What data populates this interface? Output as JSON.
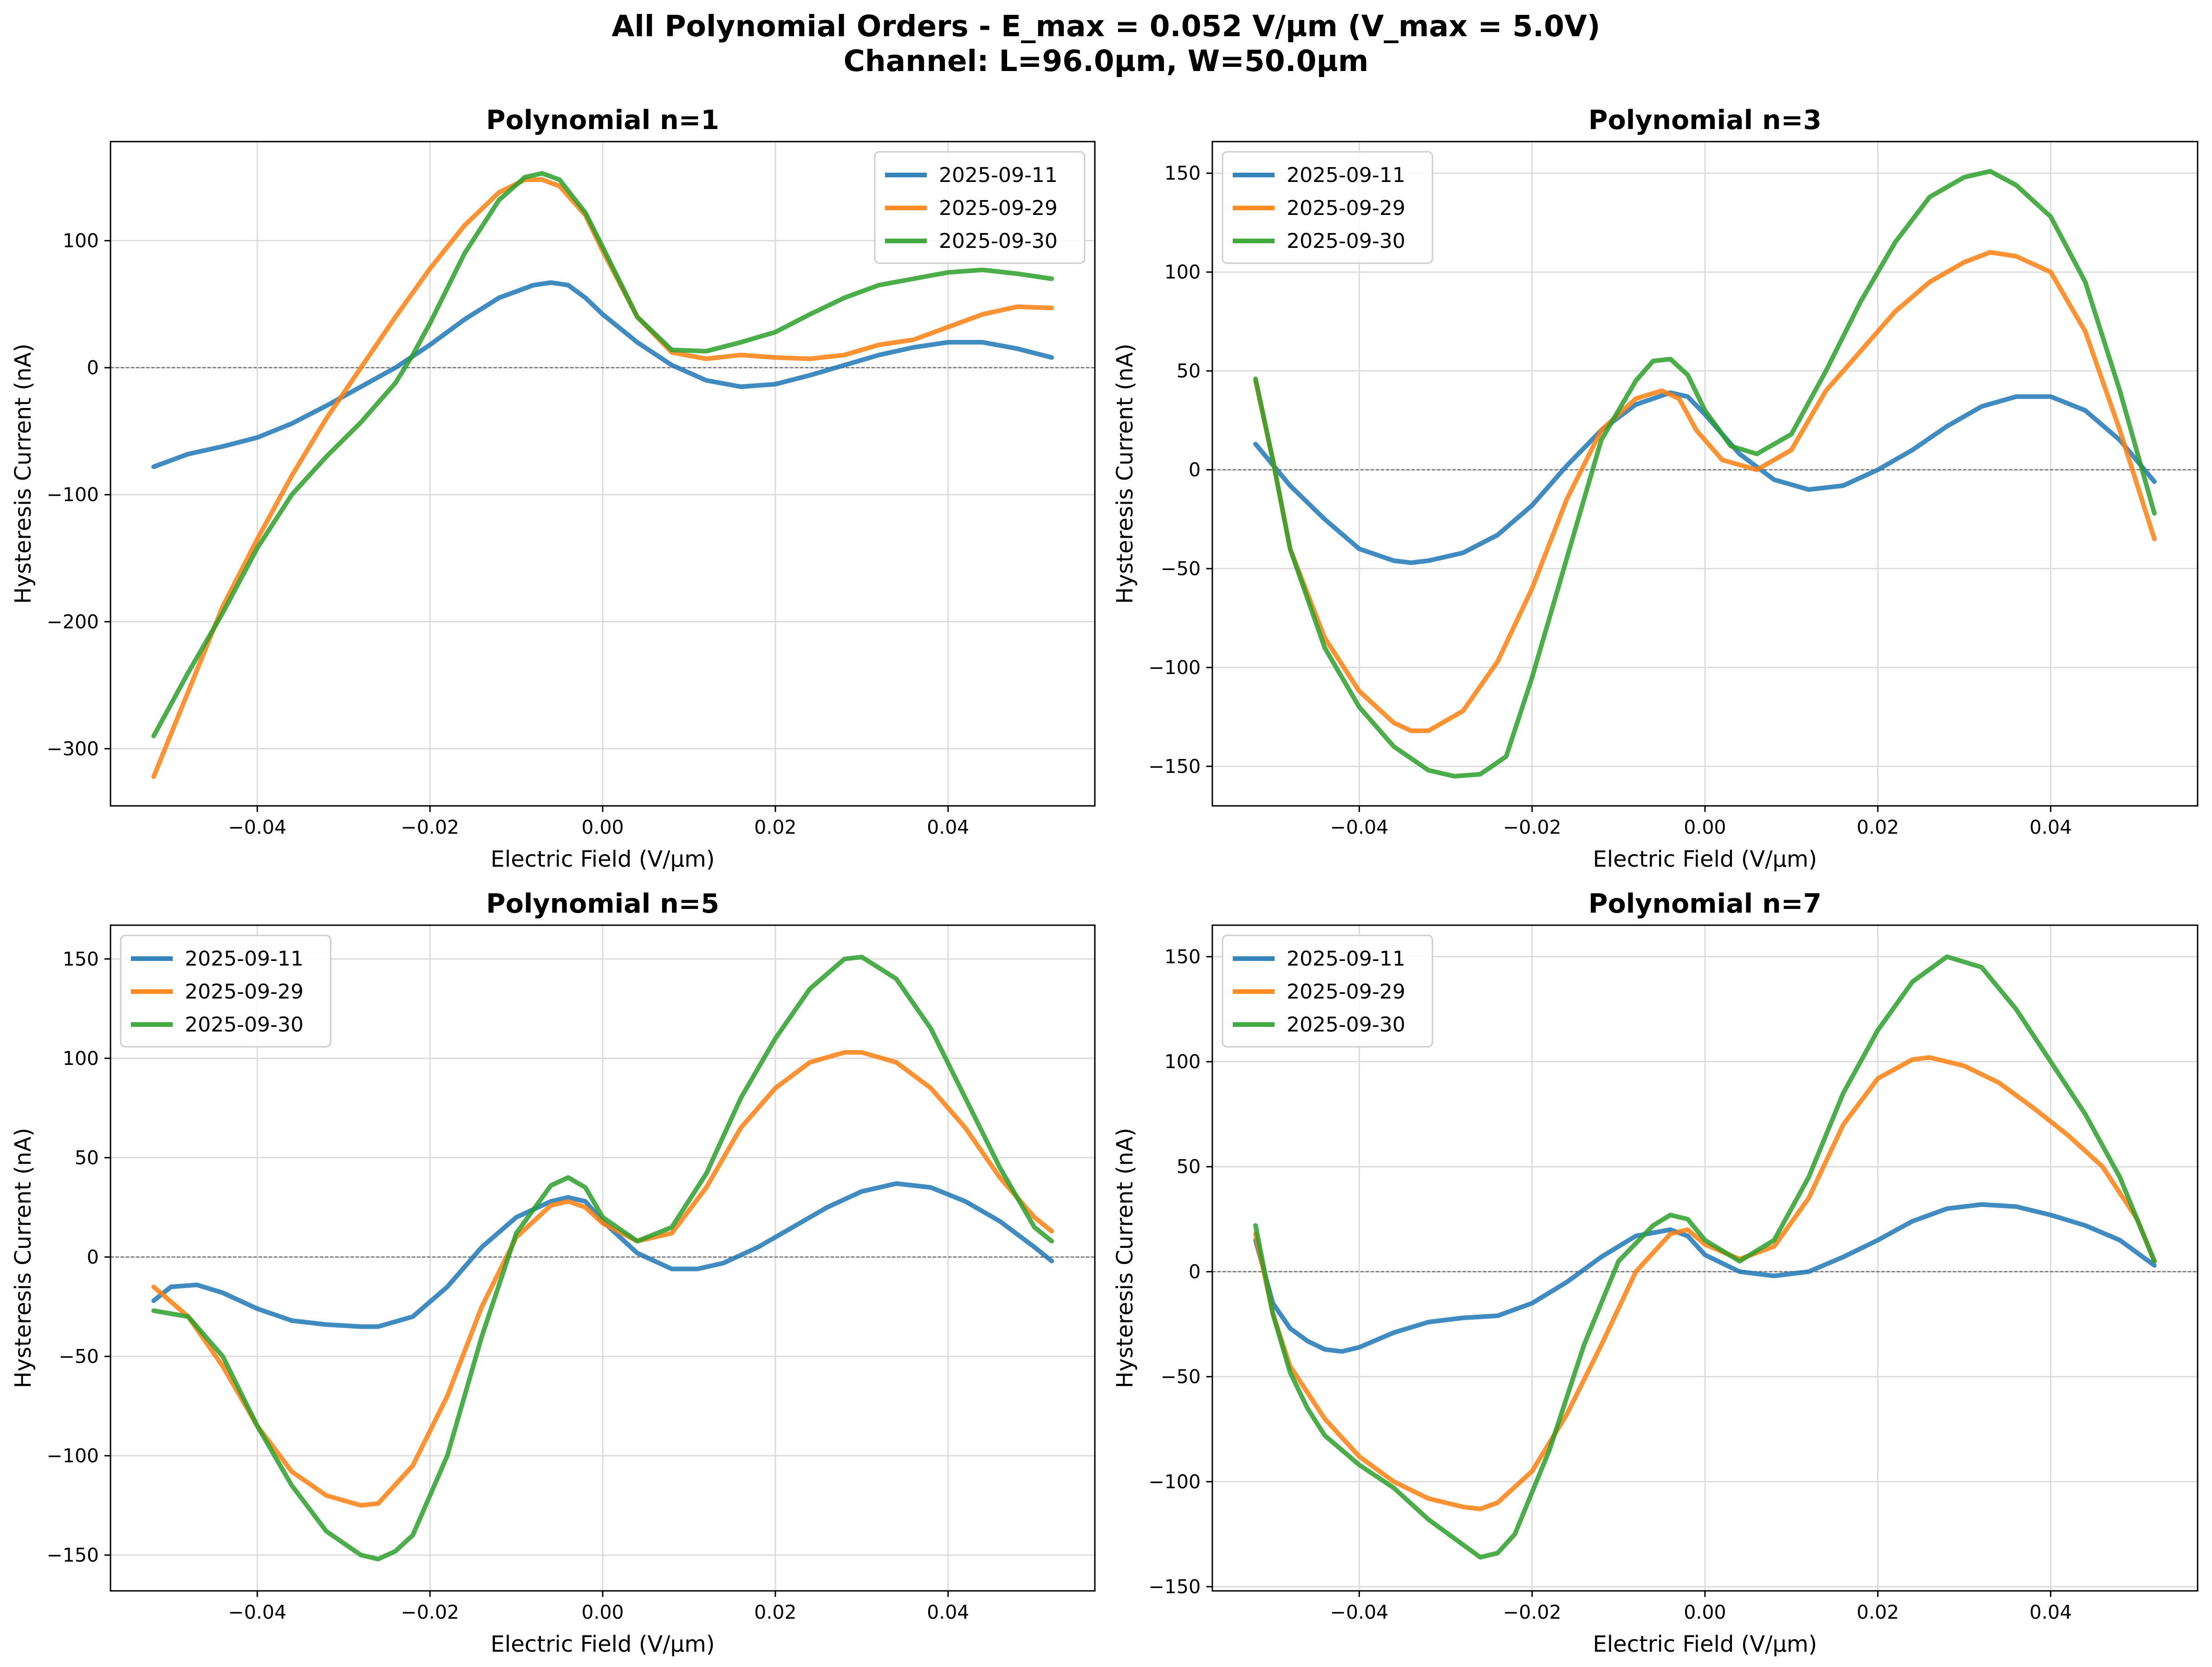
{
  "figure": {
    "title_line1": "All Polynomial Orders - E_max = 0.052 V/µm (V_max = 5.0V)",
    "title_line2": "Channel: L=96.0µm, W=50.0µm"
  },
  "colors": {
    "2025-09-11": "#1f77b4",
    "2025-09-29": "#ff7f0e",
    "2025-09-30": "#2ca02c"
  },
  "chart_data": [
    {
      "type": "line",
      "title": "Polynomial n=1",
      "xlabel": "Electric Field (V/µm)",
      "ylabel": "Hysteresis Current (nA)",
      "xlim": [
        -0.057,
        0.057
      ],
      "ylim": [
        -345,
        178
      ],
      "xticks": [
        -0.04,
        -0.02,
        0.0,
        0.02,
        0.04
      ],
      "xtick_labels": [
        "−0.04",
        "−0.02",
        "0.00",
        "0.02",
        "0.04"
      ],
      "yticks": [
        -300,
        -200,
        -100,
        0,
        100
      ],
      "ytick_labels": [
        "−300",
        "−200",
        "−100",
        "0",
        "100"
      ],
      "legend_position": "upper right",
      "grid": true,
      "zero_line": true,
      "series": [
        {
          "name": "2025-09-11",
          "x": [
            -0.052,
            -0.048,
            -0.044,
            -0.04,
            -0.036,
            -0.032,
            -0.028,
            -0.024,
            -0.02,
            -0.016,
            -0.012,
            -0.008,
            -0.006,
            -0.004,
            -0.002,
            0.0,
            0.004,
            0.008,
            0.012,
            0.016,
            0.02,
            0.024,
            0.028,
            0.032,
            0.036,
            0.04,
            0.044,
            0.048,
            0.052
          ],
          "y": [
            -78,
            -68,
            -62,
            -55,
            -44,
            -30,
            -15,
            0,
            18,
            38,
            55,
            65,
            67,
            65,
            55,
            42,
            20,
            2,
            -10,
            -15,
            -13,
            -6,
            2,
            10,
            16,
            20,
            20,
            15,
            8
          ]
        },
        {
          "name": "2025-09-29",
          "x": [
            -0.052,
            -0.048,
            -0.044,
            -0.04,
            -0.036,
            -0.032,
            -0.028,
            -0.024,
            -0.02,
            -0.016,
            -0.012,
            -0.009,
            -0.007,
            -0.005,
            -0.002,
            0.0,
            0.004,
            0.008,
            0.012,
            0.016,
            0.02,
            0.024,
            0.028,
            0.032,
            0.036,
            0.04,
            0.044,
            0.048,
            0.052
          ],
          "y": [
            -322,
            -255,
            -188,
            -135,
            -85,
            -40,
            0,
            40,
            78,
            112,
            138,
            148,
            148,
            143,
            120,
            92,
            40,
            12,
            7,
            10,
            8,
            7,
            10,
            18,
            22,
            32,
            42,
            48,
            47
          ]
        },
        {
          "name": "2025-09-30",
          "x": [
            -0.052,
            -0.048,
            -0.044,
            -0.04,
            -0.036,
            -0.032,
            -0.028,
            -0.024,
            -0.022,
            -0.02,
            -0.016,
            -0.012,
            -0.009,
            -0.007,
            -0.005,
            -0.002,
            0.0,
            0.004,
            0.008,
            0.012,
            0.016,
            0.02,
            0.024,
            0.028,
            0.032,
            0.036,
            0.04,
            0.044,
            0.048,
            0.052
          ],
          "y": [
            -290,
            -240,
            -193,
            -142,
            -100,
            -70,
            -43,
            -12,
            10,
            35,
            90,
            132,
            150,
            153,
            148,
            122,
            95,
            40,
            14,
            13,
            20,
            28,
            42,
            55,
            65,
            70,
            75,
            77,
            74,
            70
          ]
        }
      ]
    },
    {
      "type": "line",
      "title": "Polynomial n=3",
      "xlabel": "Electric Field (V/µm)",
      "ylabel": "Hysteresis Current (nA)",
      "xlim": [
        -0.057,
        0.057
      ],
      "ylim": [
        -170,
        166
      ],
      "xticks": [
        -0.04,
        -0.02,
        0.0,
        0.02,
        0.04
      ],
      "xtick_labels": [
        "−0.04",
        "−0.02",
        "0.00",
        "0.02",
        "0.04"
      ],
      "yticks": [
        -150,
        -100,
        -50,
        0,
        50,
        100,
        150
      ],
      "ytick_labels": [
        "−150",
        "−100",
        "−50",
        "0",
        "50",
        "100",
        "150"
      ],
      "legend_position": "upper left",
      "grid": true,
      "zero_line": true,
      "series": [
        {
          "name": "2025-09-11",
          "x": [
            -0.052,
            -0.048,
            -0.044,
            -0.04,
            -0.036,
            -0.034,
            -0.032,
            -0.028,
            -0.024,
            -0.02,
            -0.016,
            -0.012,
            -0.008,
            -0.004,
            -0.002,
            0.0,
            0.004,
            0.008,
            0.012,
            0.016,
            0.02,
            0.024,
            0.028,
            0.032,
            0.036,
            0.04,
            0.044,
            0.048,
            0.052
          ],
          "y": [
            13,
            -8,
            -25,
            -40,
            -46,
            -47,
            -46,
            -42,
            -33,
            -18,
            2,
            20,
            33,
            39,
            37,
            28,
            8,
            -5,
            -10,
            -8,
            0,
            10,
            22,
            32,
            37,
            37,
            30,
            15,
            -6
          ]
        },
        {
          "name": "2025-09-29",
          "x": [
            -0.052,
            -0.05,
            -0.048,
            -0.044,
            -0.04,
            -0.036,
            -0.034,
            -0.032,
            -0.028,
            -0.024,
            -0.02,
            -0.016,
            -0.012,
            -0.008,
            -0.005,
            -0.003,
            -0.001,
            0.002,
            0.006,
            0.01,
            0.014,
            0.018,
            0.022,
            0.026,
            0.03,
            0.033,
            0.036,
            0.04,
            0.044,
            0.048,
            0.052
          ],
          "y": [
            45,
            5,
            -40,
            -85,
            -112,
            -128,
            -132,
            -132,
            -122,
            -97,
            -60,
            -15,
            20,
            36,
            40,
            36,
            20,
            5,
            0,
            10,
            40,
            60,
            80,
            95,
            105,
            110,
            108,
            100,
            70,
            20,
            -35
          ]
        },
        {
          "name": "2025-09-30",
          "x": [
            -0.052,
            -0.05,
            -0.048,
            -0.044,
            -0.04,
            -0.036,
            -0.032,
            -0.029,
            -0.026,
            -0.023,
            -0.02,
            -0.016,
            -0.012,
            -0.008,
            -0.006,
            -0.004,
            -0.002,
            0.0,
            0.003,
            0.006,
            0.01,
            0.014,
            0.018,
            0.022,
            0.026,
            0.03,
            0.033,
            0.036,
            0.04,
            0.044,
            0.048,
            0.052
          ],
          "y": [
            46,
            5,
            -40,
            -90,
            -120,
            -140,
            -152,
            -155,
            -154,
            -145,
            -105,
            -45,
            15,
            45,
            55,
            56,
            48,
            30,
            12,
            8,
            18,
            50,
            85,
            115,
            138,
            148,
            151,
            144,
            128,
            95,
            40,
            -22
          ]
        }
      ]
    },
    {
      "type": "line",
      "title": "Polynomial n=5",
      "xlabel": "Electric Field (V/µm)",
      "ylabel": "Hysteresis Current (nA)",
      "xlim": [
        -0.057,
        0.057
      ],
      "ylim": [
        -168,
        167
      ],
      "xticks": [
        -0.04,
        -0.02,
        0.0,
        0.02,
        0.04
      ],
      "xtick_labels": [
        "−0.04",
        "−0.02",
        "0.00",
        "0.02",
        "0.04"
      ],
      "yticks": [
        -150,
        -100,
        -50,
        0,
        50,
        100,
        150
      ],
      "ytick_labels": [
        "−150",
        "−100",
        "−50",
        "0",
        "50",
        "100",
        "150"
      ],
      "legend_position": "upper left",
      "grid": true,
      "zero_line": true,
      "series": [
        {
          "name": "2025-09-11",
          "x": [
            -0.052,
            -0.05,
            -0.047,
            -0.044,
            -0.04,
            -0.036,
            -0.032,
            -0.028,
            -0.026,
            -0.022,
            -0.018,
            -0.014,
            -0.01,
            -0.006,
            -0.004,
            -0.002,
            0.0,
            0.004,
            0.008,
            0.011,
            0.014,
            0.018,
            0.022,
            0.026,
            0.03,
            0.034,
            0.038,
            0.042,
            0.046,
            0.05,
            0.052
          ],
          "y": [
            -22,
            -15,
            -14,
            -18,
            -26,
            -32,
            -34,
            -35,
            -35,
            -30,
            -15,
            5,
            20,
            28,
            30,
            28,
            18,
            2,
            -6,
            -6,
            -3,
            5,
            15,
            25,
            33,
            37,
            35,
            28,
            18,
            5,
            -2
          ]
        },
        {
          "name": "2025-09-29",
          "x": [
            -0.052,
            -0.048,
            -0.044,
            -0.04,
            -0.036,
            -0.032,
            -0.028,
            -0.026,
            -0.022,
            -0.018,
            -0.014,
            -0.01,
            -0.006,
            -0.004,
            -0.002,
            0.0,
            0.004,
            0.008,
            0.012,
            0.016,
            0.02,
            0.024,
            0.028,
            0.03,
            0.034,
            0.038,
            0.042,
            0.046,
            0.05,
            0.052
          ],
          "y": [
            -15,
            -30,
            -55,
            -85,
            -108,
            -120,
            -125,
            -124,
            -105,
            -70,
            -25,
            10,
            26,
            28,
            25,
            17,
            8,
            12,
            35,
            65,
            85,
            98,
            103,
            103,
            98,
            85,
            65,
            40,
            20,
            13
          ]
        },
        {
          "name": "2025-09-30",
          "x": [
            -0.052,
            -0.048,
            -0.044,
            -0.04,
            -0.036,
            -0.032,
            -0.028,
            -0.026,
            -0.024,
            -0.022,
            -0.018,
            -0.014,
            -0.01,
            -0.006,
            -0.004,
            -0.002,
            0.0,
            0.004,
            0.008,
            0.012,
            0.016,
            0.02,
            0.024,
            0.028,
            0.03,
            0.034,
            0.038,
            0.042,
            0.046,
            0.05,
            0.052
          ],
          "y": [
            -27,
            -30,
            -50,
            -85,
            -115,
            -138,
            -150,
            -152,
            -148,
            -140,
            -100,
            -40,
            12,
            36,
            40,
            35,
            20,
            8,
            15,
            42,
            80,
            110,
            135,
            150,
            151,
            140,
            115,
            80,
            45,
            15,
            8
          ]
        }
      ]
    },
    {
      "type": "line",
      "title": "Polynomial n=7",
      "xlabel": "Electric Field (V/µm)",
      "ylabel": "Hysteresis Current (nA)",
      "xlim": [
        -0.057,
        0.057
      ],
      "ylim": [
        -152,
        165
      ],
      "xticks": [
        -0.04,
        -0.02,
        0.0,
        0.02,
        0.04
      ],
      "xtick_labels": [
        "−0.04",
        "−0.02",
        "0.00",
        "0.02",
        "0.04"
      ],
      "yticks": [
        -150,
        -100,
        -50,
        0,
        50,
        100,
        150
      ],
      "ytick_labels": [
        "−150",
        "−100",
        "−50",
        "0",
        "50",
        "100",
        "150"
      ],
      "legend_position": "upper left",
      "grid": true,
      "zero_line": true,
      "series": [
        {
          "name": "2025-09-11",
          "x": [
            -0.052,
            -0.05,
            -0.048,
            -0.046,
            -0.044,
            -0.042,
            -0.04,
            -0.036,
            -0.032,
            -0.028,
            -0.024,
            -0.02,
            -0.016,
            -0.012,
            -0.008,
            -0.004,
            -0.002,
            0.0,
            0.004,
            0.008,
            0.012,
            0.016,
            0.02,
            0.024,
            0.028,
            0.032,
            0.036,
            0.04,
            0.044,
            0.048,
            0.052
          ],
          "y": [
            15,
            -15,
            -27,
            -33,
            -37,
            -38,
            -36,
            -29,
            -24,
            -22,
            -21,
            -15,
            -5,
            7,
            17,
            20,
            17,
            8,
            0,
            -2,
            0,
            7,
            15,
            24,
            30,
            32,
            31,
            27,
            22,
            15,
            3
          ]
        },
        {
          "name": "2025-09-29",
          "x": [
            -0.052,
            -0.05,
            -0.048,
            -0.044,
            -0.04,
            -0.036,
            -0.032,
            -0.028,
            -0.026,
            -0.024,
            -0.02,
            -0.016,
            -0.012,
            -0.008,
            -0.004,
            -0.002,
            0.0,
            0.004,
            0.008,
            0.012,
            0.016,
            0.02,
            0.024,
            0.026,
            0.03,
            0.034,
            0.038,
            0.042,
            0.046,
            0.05,
            0.052
          ],
          "y": [
            18,
            -20,
            -45,
            -70,
            -88,
            -100,
            -108,
            -112,
            -113,
            -110,
            -95,
            -68,
            -35,
            0,
            18,
            20,
            13,
            6,
            12,
            35,
            70,
            92,
            101,
            102,
            98,
            90,
            78,
            65,
            50,
            25,
            5
          ]
        },
        {
          "name": "2025-09-30",
          "x": [
            -0.052,
            -0.05,
            -0.048,
            -0.046,
            -0.044,
            -0.04,
            -0.036,
            -0.032,
            -0.028,
            -0.026,
            -0.024,
            -0.022,
            -0.018,
            -0.014,
            -0.01,
            -0.006,
            -0.004,
            -0.002,
            0.0,
            0.004,
            0.008,
            0.012,
            0.016,
            0.02,
            0.024,
            0.028,
            0.032,
            0.036,
            0.04,
            0.044,
            0.048,
            0.052
          ],
          "y": [
            22,
            -20,
            -48,
            -65,
            -78,
            -92,
            -103,
            -118,
            -130,
            -136,
            -134,
            -125,
            -85,
            -35,
            5,
            22,
            27,
            25,
            15,
            5,
            15,
            45,
            85,
            115,
            138,
            150,
            145,
            125,
            100,
            75,
            45,
            5
          ]
        }
      ]
    }
  ]
}
